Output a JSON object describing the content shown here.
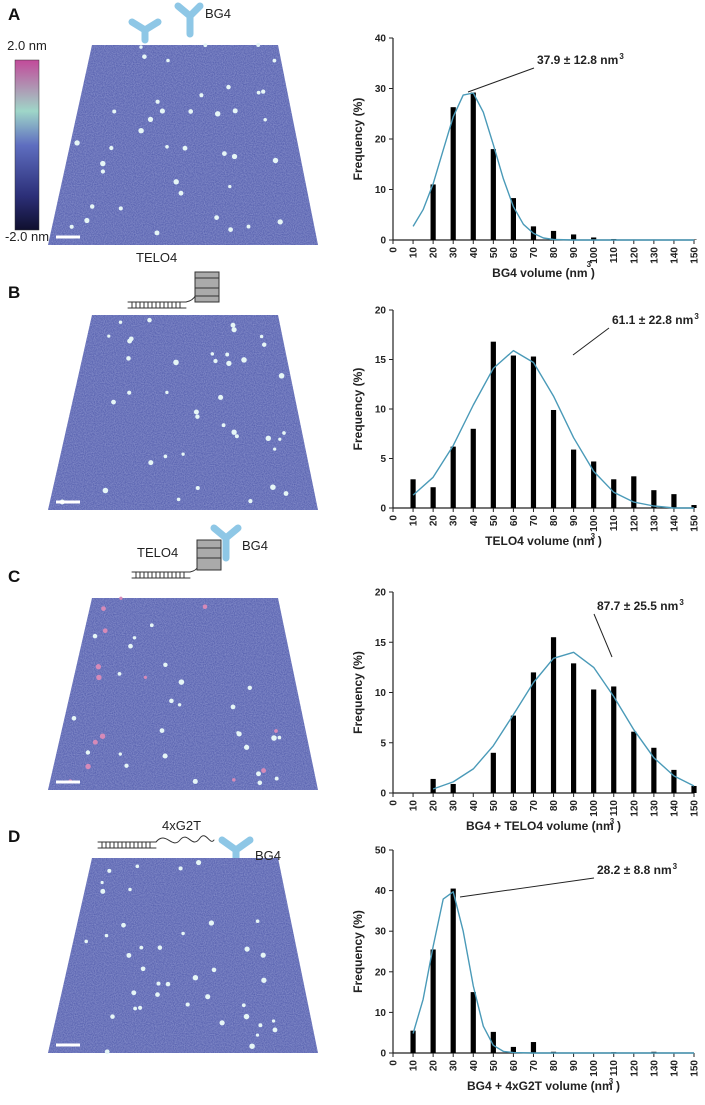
{
  "panels": [
    {
      "letter": "A",
      "labels": [
        "BG4"
      ]
    },
    {
      "letter": "B",
      "labels": [
        "TELO4"
      ]
    },
    {
      "letter": "C",
      "labels": [
        "TELO4",
        "BG4"
      ]
    },
    {
      "letter": "D",
      "labels": [
        "4xG2T",
        "BG4"
      ]
    }
  ],
  "colorbar": {
    "max_label": "2.0 nm",
    "min_label": "-2.0 nm"
  },
  "chart_data": [
    {
      "type": "bar",
      "color": "#000000",
      "x": [
        10,
        20,
        30,
        40,
        50,
        60,
        70,
        80,
        90,
        100,
        110,
        120,
        130,
        140,
        150
      ],
      "values": [
        0,
        11,
        26.3,
        29.2,
        18,
        8.3,
        2.7,
        1.8,
        1.1,
        0.5,
        0.2,
        0.1,
        0.1,
        0.1,
        0.1
      ],
      "fit": {
        "color": "#4a9ab8",
        "x": [
          10,
          15,
          20,
          25,
          30,
          35,
          40,
          45,
          50,
          55,
          60,
          65,
          70,
          75,
          80,
          90,
          100,
          110,
          120,
          130,
          140,
          150
        ],
        "values": [
          2.7,
          6,
          11.1,
          17.8,
          24.4,
          28.7,
          29.1,
          25.3,
          18.9,
          12.1,
          6.6,
          3.1,
          1.3,
          0.4,
          0.1,
          0,
          0,
          0,
          0,
          0,
          0,
          0
        ]
      },
      "xlim": [
        0,
        150
      ],
      "xticks": [
        0,
        10,
        20,
        30,
        40,
        50,
        60,
        70,
        80,
        90,
        100,
        110,
        120,
        130,
        140,
        150
      ],
      "ylim": [
        0,
        40
      ],
      "yticks": [
        0,
        10,
        20,
        30,
        40
      ],
      "y_label": "Frequency (%)",
      "x_label": "BG4 volume (nm )",
      "x_label_sup": "3",
      "annotation": "37.9 ± 12.8 nm",
      "annotation_sup": "3"
    },
    {
      "type": "bar",
      "color": "#000000",
      "x": [
        10,
        20,
        30,
        40,
        50,
        60,
        70,
        80,
        90,
        100,
        110,
        120,
        130,
        140,
        150
      ],
      "values": [
        2.9,
        2.1,
        6.2,
        8,
        16.8,
        15.4,
        15.3,
        9.9,
        5.9,
        4.7,
        2.9,
        3.2,
        1.8,
        1.4,
        0.3
      ],
      "fit": {
        "color": "#4a9ab8",
        "x": [
          10,
          20,
          30,
          40,
          50,
          60,
          70,
          80,
          90,
          100,
          110,
          120,
          130,
          140,
          150
        ],
        "values": [
          1.3,
          3.1,
          6.3,
          10.4,
          14.1,
          15.9,
          14.7,
          11.3,
          7.1,
          3.7,
          1.6,
          0.6,
          0.2,
          0,
          0
        ]
      },
      "xlim": [
        0,
        150
      ],
      "xticks": [
        0,
        10,
        20,
        30,
        40,
        50,
        60,
        70,
        80,
        90,
        100,
        110,
        120,
        130,
        140,
        150
      ],
      "ylim": [
        0,
        20
      ],
      "yticks": [
        0,
        5,
        10,
        15,
        20
      ],
      "y_label": "Frequency (%)",
      "x_label": "TELO4 volume (nm )",
      "x_label_sup": "3",
      "annotation": "61.1 ± 22.8 nm",
      "annotation_sup": "3"
    },
    {
      "type": "bar",
      "color": "#000000",
      "x": [
        10,
        20,
        30,
        40,
        50,
        60,
        70,
        80,
        90,
        100,
        110,
        120,
        130,
        140,
        150
      ],
      "values": [
        0,
        1.4,
        0.9,
        0,
        4,
        7.7,
        12,
        15.5,
        12.9,
        10.3,
        10.6,
        6.1,
        4.5,
        2.3,
        0.7
      ],
      "fit": {
        "color": "#4a9ab8",
        "x": [
          20,
          30,
          40,
          50,
          60,
          70,
          80,
          90,
          100,
          110,
          120,
          130,
          140,
          150
        ],
        "values": [
          0.4,
          1.1,
          2.4,
          4.7,
          7.8,
          11,
          13.4,
          14,
          12.5,
          9.6,
          6.3,
          3.5,
          1.7,
          0.7
        ]
      },
      "xlim": [
        0,
        150
      ],
      "xticks": [
        0,
        10,
        20,
        30,
        40,
        50,
        60,
        70,
        80,
        90,
        100,
        110,
        120,
        130,
        140,
        150
      ],
      "ylim": [
        0,
        20
      ],
      "yticks": [
        0,
        5,
        10,
        15,
        20
      ],
      "y_label": "Frequency (%)",
      "x_label": "BG4 + TELO4 volume (nm )",
      "x_label_sup": "3",
      "annotation": "87.7 ± 25.5 nm",
      "annotation_sup": "3"
    },
    {
      "type": "bar",
      "color": "#000000",
      "x": [
        10,
        20,
        30,
        40,
        50,
        60,
        70,
        80,
        90,
        100,
        110,
        120,
        130,
        140,
        150
      ],
      "values": [
        5.5,
        25.5,
        40.5,
        15,
        5.2,
        1.5,
        2.7,
        0.3,
        0,
        0.1,
        0.2,
        0,
        0.3,
        0,
        0
      ],
      "fit": {
        "color": "#4a9ab8",
        "x": [
          10,
          15,
          20,
          25,
          30,
          35,
          40,
          45,
          50,
          55,
          60,
          70,
          80,
          90,
          100,
          110,
          120,
          130,
          140,
          150
        ],
        "values": [
          4.8,
          13.2,
          26.2,
          37.9,
          39.7,
          30,
          16.5,
          6.6,
          1.9,
          0.4,
          0.1,
          0,
          0,
          0,
          0,
          0,
          0,
          0,
          0,
          0
        ]
      },
      "xlim": [
        0,
        150
      ],
      "xticks": [
        0,
        10,
        20,
        30,
        40,
        50,
        60,
        70,
        80,
        90,
        100,
        110,
        120,
        130,
        140,
        150
      ],
      "ylim": [
        0,
        50
      ],
      "yticks": [
        0,
        10,
        20,
        30,
        40,
        50
      ],
      "y_label": "Frequency (%)",
      "x_label": "BG4 + 4xG2T volume (nm )",
      "x_label_sup": "3",
      "annotation": "28.2 ± 8.8 nm",
      "annotation_sup": "3"
    }
  ]
}
